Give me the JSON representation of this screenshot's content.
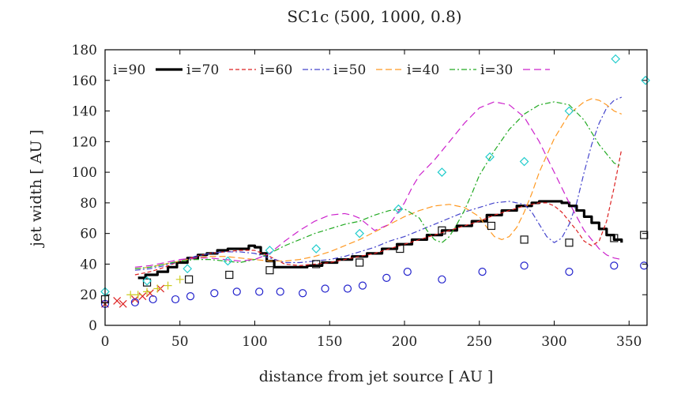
{
  "chart_data": {
    "type": "line",
    "title": "SC1c (500, 1000, 0.8)",
    "xlabel": "distance from jet source [ AU ]",
    "ylabel": "jet width [ AU ]",
    "xlim": [
      0,
      362
    ],
    "ylim": [
      0,
      180
    ],
    "x_ticks": [
      0,
      50,
      100,
      150,
      200,
      250,
      300,
      350
    ],
    "y_ticks": [
      0,
      20,
      40,
      60,
      80,
      100,
      120,
      140,
      160,
      180
    ],
    "legend": [
      "i=90",
      "i=70",
      "i=60",
      "i=50",
      "i=40",
      "i=30"
    ],
    "series": [
      {
        "name": "i=90",
        "style": "line",
        "color": "#000000",
        "width": 3.2,
        "dash": "",
        "step": true,
        "x": [
          22,
          27,
          35,
          42,
          48,
          55,
          62,
          68,
          75,
          82,
          90,
          96,
          100,
          104,
          108,
          113,
          118,
          125,
          135,
          145,
          155,
          165,
          175,
          185,
          195,
          205,
          215,
          225,
          235,
          245,
          255,
          265,
          275,
          285,
          290,
          300,
          305,
          310,
          315,
          320,
          325,
          330,
          335,
          340,
          345
        ],
        "y": [
          31,
          33,
          35,
          38,
          41,
          44,
          46,
          47,
          49,
          50,
          50,
          52,
          51,
          47,
          42,
          38,
          38,
          38,
          39,
          41,
          43,
          45,
          47,
          50,
          53,
          56,
          59,
          62,
          65,
          68,
          72,
          75,
          78,
          80,
          81,
          81,
          80,
          78,
          75,
          71,
          67,
          63,
          59,
          56,
          54
        ]
      },
      {
        "name": "i=70",
        "style": "line",
        "color": "#dd2222",
        "width": 1.2,
        "dash": "5,3",
        "step": false,
        "x": [
          20,
          30,
          40,
          50,
          60,
          70,
          80,
          90,
          100,
          110,
          120,
          130,
          140,
          150,
          160,
          170,
          180,
          190,
          200,
          210,
          220,
          230,
          240,
          250,
          260,
          270,
          280,
          285,
          290,
          295,
          300,
          305,
          310,
          315,
          320,
          325,
          330,
          335,
          340,
          345
        ],
        "y": [
          33,
          35,
          38,
          42,
          45,
          47,
          48,
          49,
          49,
          45,
          40,
          39,
          40,
          41,
          43,
          45,
          47,
          50,
          53,
          56,
          59,
          62,
          65,
          68,
          72,
          75,
          78,
          79,
          80,
          80,
          78,
          74,
          68,
          62,
          55,
          52,
          55,
          68,
          90,
          115
        ]
      },
      {
        "name": "i=60",
        "style": "line",
        "color": "#4444cc",
        "width": 1.2,
        "dash": "7,3,2,3",
        "step": false,
        "x": [
          20,
          30,
          40,
          50,
          60,
          70,
          80,
          90,
          100,
          110,
          120,
          130,
          140,
          150,
          160,
          170,
          180,
          190,
          200,
          210,
          220,
          230,
          240,
          250,
          260,
          270,
          280,
          285,
          290,
          295,
          300,
          305,
          310,
          315,
          320,
          325,
          330,
          335,
          340,
          345
        ],
        "y": [
          36,
          37,
          39,
          42,
          45,
          47,
          48,
          48,
          47,
          44,
          41,
          41,
          42,
          43,
          45,
          48,
          51,
          55,
          58,
          62,
          66,
          70,
          74,
          77,
          80,
          81,
          79,
          74,
          66,
          58,
          54,
          57,
          66,
          80,
          100,
          118,
          132,
          142,
          147,
          149
        ]
      },
      {
        "name": "i=50",
        "style": "line",
        "color": "#ff9922",
        "width": 1.2,
        "dash": "8,4",
        "step": false,
        "x": [
          20,
          30,
          40,
          50,
          60,
          70,
          80,
          90,
          100,
          110,
          120,
          130,
          140,
          150,
          160,
          170,
          180,
          190,
          200,
          210,
          220,
          230,
          240,
          250,
          255,
          260,
          265,
          270,
          275,
          280,
          285,
          290,
          300,
          310,
          320,
          325,
          330,
          335,
          340,
          345
        ],
        "y": [
          37,
          38,
          40,
          42,
          44,
          45,
          45,
          44,
          43,
          42,
          42,
          43,
          45,
          48,
          52,
          56,
          61,
          66,
          71,
          75,
          78,
          79,
          77,
          71,
          64,
          58,
          56,
          58,
          64,
          74,
          86,
          100,
          122,
          138,
          146,
          148,
          147,
          144,
          140,
          138
        ]
      },
      {
        "name": "i=40",
        "style": "line",
        "color": "#22aa22",
        "width": 1.2,
        "dash": "7,3,2,3",
        "step": false,
        "x": [
          20,
          30,
          40,
          50,
          60,
          70,
          80,
          90,
          100,
          110,
          120,
          130,
          140,
          150,
          160,
          170,
          180,
          190,
          200,
          210,
          215,
          220,
          225,
          230,
          235,
          240,
          245,
          250,
          260,
          270,
          280,
          290,
          300,
          310,
          320,
          325,
          330,
          335,
          340,
          345
        ],
        "y": [
          37,
          38,
          40,
          42,
          43,
          43,
          42,
          41,
          43,
          47,
          52,
          56,
          60,
          63,
          66,
          68,
          72,
          75,
          76,
          70,
          62,
          56,
          54,
          58,
          66,
          75,
          86,
          98,
          114,
          128,
          138,
          144,
          146,
          144,
          134,
          126,
          118,
          112,
          106,
          104
        ]
      },
      {
        "name": "i=30",
        "style": "line",
        "color": "#cc22cc",
        "width": 1.2,
        "dash": "9,5",
        "step": false,
        "x": [
          20,
          30,
          40,
          50,
          60,
          70,
          80,
          90,
          100,
          110,
          120,
          130,
          140,
          150,
          160,
          165,
          170,
          175,
          180,
          190,
          200,
          205,
          210,
          220,
          230,
          240,
          250,
          260,
          270,
          280,
          290,
          300,
          310,
          320,
          330,
          335,
          340,
          345
        ],
        "y": [
          38,
          39,
          41,
          43,
          44,
          44,
          43,
          42,
          43,
          47,
          55,
          62,
          68,
          72,
          73,
          72,
          70,
          66,
          62,
          66,
          80,
          90,
          98,
          108,
          120,
          132,
          142,
          146,
          144,
          136,
          120,
          100,
          80,
          62,
          50,
          46,
          44,
          43
        ]
      },
      {
        "name": "markers-red-x",
        "style": "marker",
        "marker": "x",
        "color": "#dd2222",
        "x": [
          0,
          8,
          12,
          20,
          25,
          30,
          37
        ],
        "y": [
          14,
          16,
          14,
          17,
          19,
          21,
          24
        ]
      },
      {
        "name": "markers-yellow-plus",
        "style": "marker",
        "marker": "plus",
        "color": "#cccc22",
        "x": [
          17,
          22,
          28,
          35,
          42,
          50
        ],
        "y": [
          20,
          20,
          22,
          24,
          26,
          30
        ]
      },
      {
        "name": "markers-blue-circle",
        "style": "marker",
        "marker": "circle",
        "color": "#2222cc",
        "x": [
          0,
          20,
          32,
          47,
          57,
          73,
          88,
          103,
          117,
          132,
          147,
          162,
          172,
          188,
          202,
          225,
          252,
          280,
          310,
          340,
          360
        ],
        "y": [
          14,
          15,
          17,
          17,
          19,
          21,
          22,
          22,
          22,
          21,
          24,
          24,
          26,
          31,
          35,
          30,
          35,
          39,
          35,
          39,
          39
        ]
      },
      {
        "name": "markers-black-square",
        "style": "marker",
        "marker": "square",
        "color": "#111111",
        "x": [
          0,
          28,
          56,
          83,
          110,
          141,
          170,
          197,
          225,
          258,
          280,
          310,
          340,
          360
        ],
        "y": [
          17,
          28,
          30,
          33,
          36,
          40,
          41,
          50,
          62,
          65,
          56,
          54,
          57,
          59
        ]
      },
      {
        "name": "markers-cyan-diamond",
        "style": "marker",
        "marker": "diamond",
        "color": "#22cccc",
        "x": [
          0,
          28,
          55,
          82,
          110,
          141,
          170,
          196,
          225,
          257,
          280,
          310,
          341,
          361
        ],
        "y": [
          22,
          29,
          37,
          42,
          49,
          50,
          60,
          76,
          100,
          110,
          107,
          140,
          174,
          160
        ]
      }
    ]
  }
}
